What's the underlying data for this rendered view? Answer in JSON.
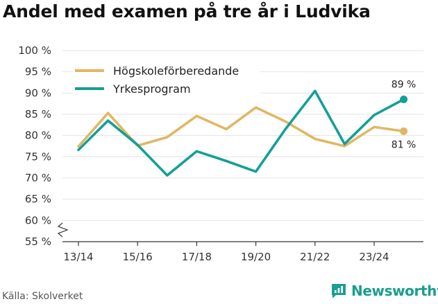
{
  "title": "Andel med examen på tre år i Ludvika",
  "source": "Källa: Skolverket",
  "logo_text": "Newsworthy",
  "colors": {
    "gold": "#e0b762",
    "teal": "#13a097",
    "grid": "#e3e3e3",
    "axis": "#333333",
    "brand": "#1a9e8f"
  },
  "chart_data": {
    "type": "line",
    "x": [
      "13/14",
      "14/15",
      "15/16",
      "16/17",
      "17/18",
      "18/19",
      "19/20",
      "20/21",
      "21/22",
      "22/23",
      "23/24",
      "24/25"
    ],
    "x_tick_labels": [
      "13/14",
      "15/16",
      "17/18",
      "19/20",
      "21/22",
      "23/24"
    ],
    "y_ticks": [
      55,
      60,
      65,
      70,
      75,
      80,
      85,
      90,
      95,
      100
    ],
    "y_tick_labels": [
      "55 %",
      "60 %",
      "65 %",
      "70 %",
      "75 %",
      "80 %",
      "85 %",
      "90 %",
      "95 %",
      "100 %"
    ],
    "ylim": [
      55,
      100
    ],
    "axis_break": true,
    "grid": true,
    "legend_position": "top-left",
    "series": [
      {
        "name": "Högskoleförberedande",
        "color": "#e0b762",
        "values": [
          77.4,
          85.3,
          77.6,
          79.6,
          84.6,
          81.5,
          86.6,
          83.3,
          79.2,
          77.5,
          82.0,
          81.0
        ],
        "end_label": "81 %"
      },
      {
        "name": "Yrkesprogram",
        "color": "#13a097",
        "values": [
          76.6,
          83.5,
          77.8,
          70.6,
          76.3,
          74.0,
          71.5,
          81.5,
          90.5,
          78.0,
          84.8,
          88.5
        ],
        "end_label": "89 %"
      }
    ]
  }
}
